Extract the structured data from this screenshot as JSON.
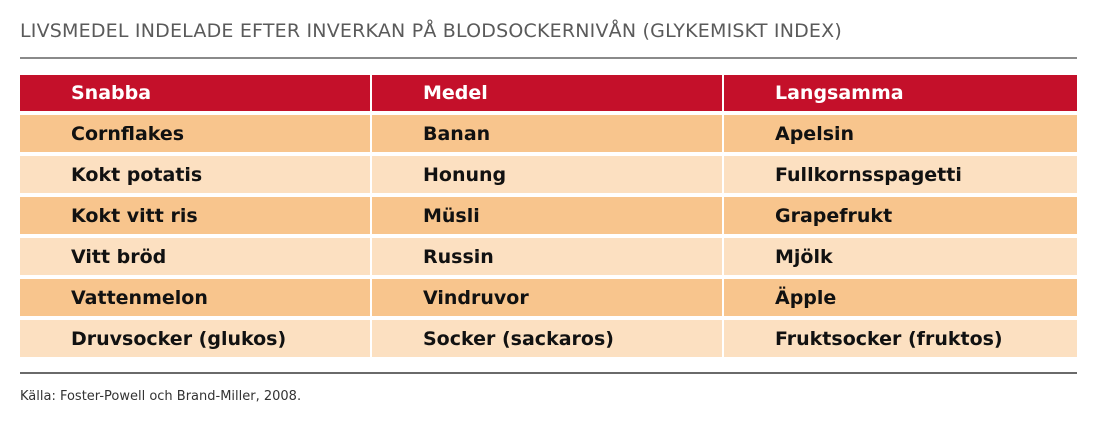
{
  "title": "LIVSMEDEL INDELADE EFTER INVERKAN PÅ BLODSOCKERNIVÅN (GLYKEMISKT INDEX)",
  "table": {
    "headers": [
      "Snabba",
      "Medel",
      "Langsamma"
    ],
    "rows": [
      [
        "Cornflakes",
        "Banan",
        "Apelsin"
      ],
      [
        "Kokt potatis",
        "Honung",
        "Fullkornsspagetti"
      ],
      [
        "Kokt vitt ris",
        "Müsli",
        "Grapefrukt"
      ],
      [
        "Vitt bröd",
        "Russin",
        "Mjölk"
      ],
      [
        "Vattenmelon",
        "Vindruvor",
        "Äpple"
      ],
      [
        "Druvsocker (glukos)",
        "Socker (sackaros)",
        "Fruktsocker (fruktos)"
      ]
    ]
  },
  "source": "Källa: Foster-Powell och Brand-Miller, 2008.",
  "colors": {
    "header_bg": "#c4102a",
    "row_dark": "#f8c58d",
    "row_light": "#fce0c1"
  }
}
